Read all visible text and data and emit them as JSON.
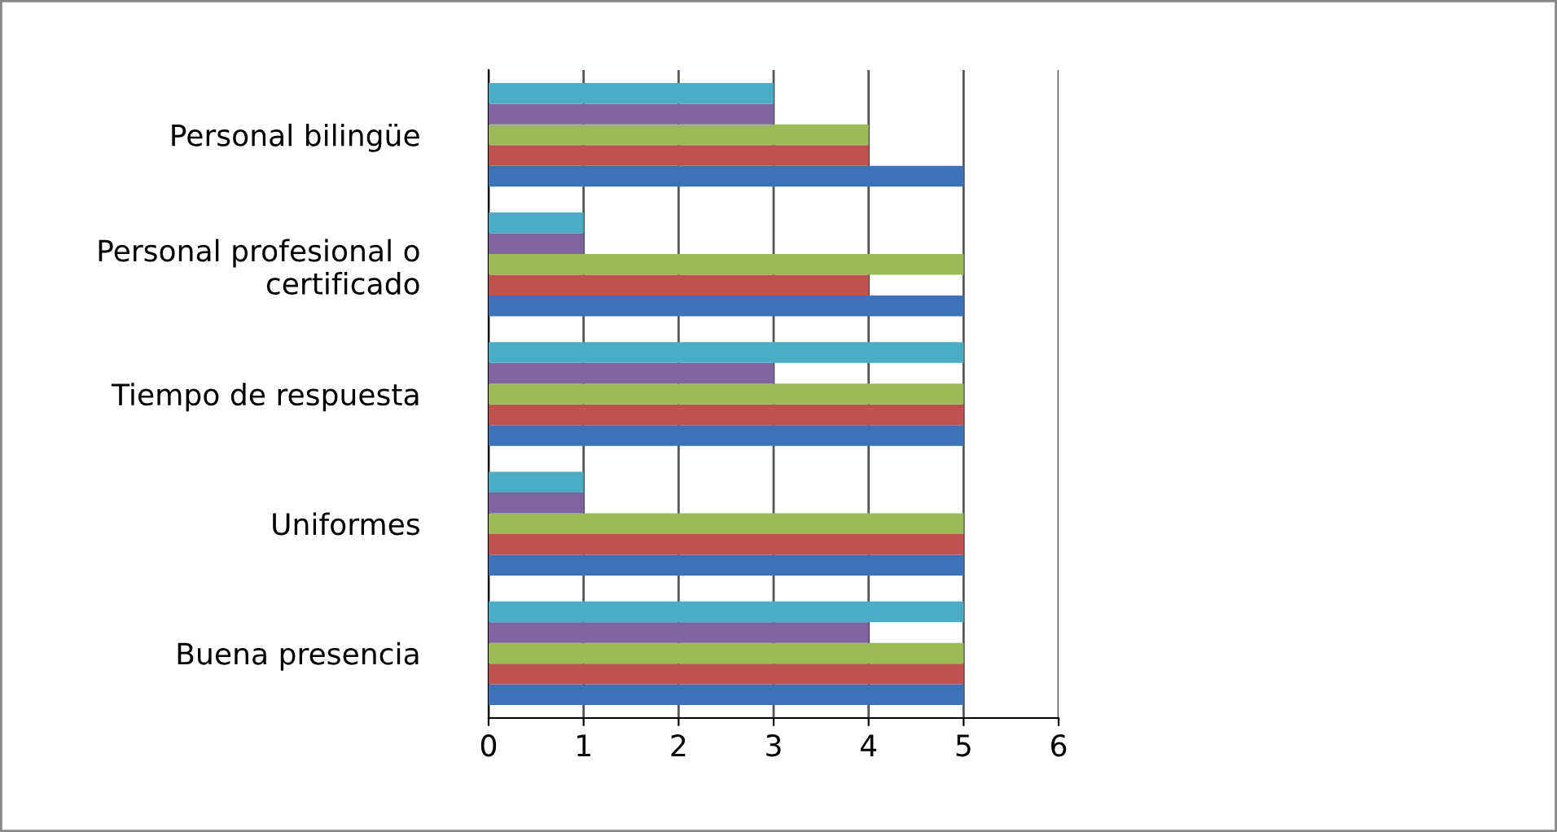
{
  "chart_data": {
    "type": "bar",
    "orientation": "horizontal",
    "categories": [
      "Personal bilingüe",
      "Personal profesional o\ncertificado",
      "Tiempo de respuesta",
      "Uniformes",
      "Buena presencia"
    ],
    "series": [
      {
        "color": "#3d72b8",
        "values": [
          5,
          5,
          5,
          5,
          5
        ]
      },
      {
        "color": "#c0504d",
        "values": [
          4,
          4,
          5,
          5,
          5
        ]
      },
      {
        "color": "#9bbb59",
        "values": [
          4,
          5,
          5,
          5,
          5
        ]
      },
      {
        "color": "#8064a2",
        "values": [
          3,
          1,
          3,
          1,
          4
        ]
      },
      {
        "color": "#4bacc6",
        "values": [
          3,
          1,
          5,
          1,
          5
        ]
      }
    ],
    "xlim": [
      0,
      6
    ],
    "xticks": [
      0,
      1,
      2,
      3,
      4,
      5,
      6
    ],
    "grid": "x"
  }
}
